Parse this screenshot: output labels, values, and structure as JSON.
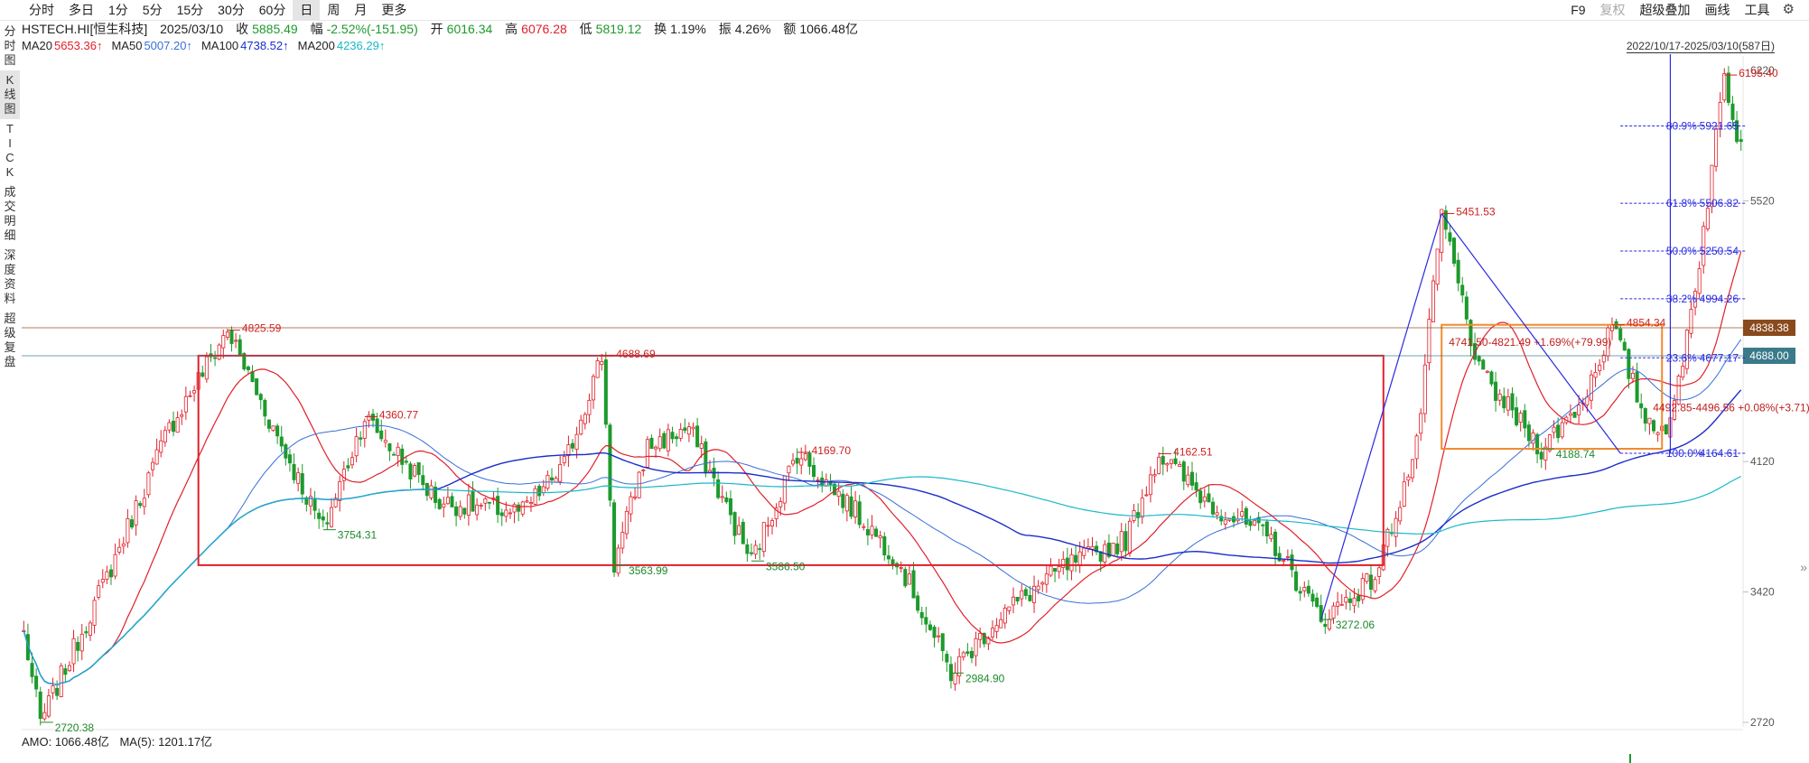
{
  "toolbar": {
    "tabs": [
      {
        "label": "分时",
        "active": false
      },
      {
        "label": "多日",
        "active": false
      },
      {
        "label": "1分",
        "active": false
      },
      {
        "label": "5分",
        "active": false
      },
      {
        "label": "15分",
        "active": false
      },
      {
        "label": "30分",
        "active": false
      },
      {
        "label": "60分",
        "active": false
      },
      {
        "label": "日",
        "active": true
      },
      {
        "label": "周",
        "active": false
      },
      {
        "label": "月",
        "active": false
      },
      {
        "label": "更多",
        "active": false
      }
    ],
    "right_items": [
      "F9",
      "复权",
      "超级叠加",
      "画线",
      "工具"
    ]
  },
  "info": {
    "name": "HSTECH.HI[恒生科技]",
    "date": "2025/03/10",
    "close_label": "收",
    "close": "5885.49",
    "change_label": "幅",
    "change": "-2.52%(-151.95)",
    "open_label": "开",
    "open": "6016.34",
    "high_label": "高",
    "high": "6076.28",
    "low_label": "低",
    "low": "5819.12",
    "turnover_label": "换",
    "turnover": "1.19%",
    "amplitude_label": "振",
    "amplitude": "4.26%",
    "amount_label": "额",
    "amount": "1066.48亿"
  },
  "ma": [
    {
      "label": "MA20",
      "value": "5653.36↑",
      "color": "#e0202a"
    },
    {
      "label": "MA50",
      "value": "5007.20↑",
      "color": "#3a6fd8"
    },
    {
      "label": "MA100",
      "value": "4738.52↑",
      "color": "#1a2fc8"
    },
    {
      "label": "MA200",
      "value": "4236.29↑",
      "color": "#18b8c8"
    }
  ],
  "side_buttons": [
    {
      "label": "分时图",
      "active": false
    },
    {
      "label": "K线图",
      "active": true
    },
    {
      "label": "TICK",
      "active": false
    },
    {
      "label": "成交明细",
      "active": false
    },
    {
      "label": "深度资料",
      "active": false
    },
    {
      "label": "超级复盘",
      "active": false
    }
  ],
  "range_label": "2022/10/17-2025/03/10(587日)",
  "bottom": {
    "amo": "AMO: 1066.48亿",
    "ma5": "MA(5): 1201.17亿"
  },
  "colors": {
    "up": "#e0202a",
    "down": "#1d9a2c",
    "ma20": "#e0202a",
    "ma50": "#3a6fd8",
    "ma100": "#1a2fc8",
    "ma200": "#18b8c8",
    "box": "#e0202a",
    "box2": "#f28a2c",
    "trend": "#2a2ae0"
  },
  "chart_data": {
    "type": "candlestick",
    "x_range": [
      "2022/10/17",
      "2025/03/10"
    ],
    "bars": 587,
    "ylim": [
      2600,
      6300
    ],
    "yticks": [
      2720,
      3420,
      4120,
      4820,
      5520,
      6220
    ],
    "price_tags": [
      {
        "value": 4838.38,
        "label": "4838.38",
        "color": "#8a4a1e"
      },
      {
        "value": 4688.0,
        "label": "4688.00",
        "color": "#3a7a8a"
      }
    ],
    "extrema": [
      {
        "i": 4,
        "price": 2720.38,
        "label": "2720.38",
        "kind": "low"
      },
      {
        "i": 49,
        "price": 4825.59,
        "label": "4825.59",
        "kind": "high"
      },
      {
        "i": 72,
        "price": 3754.31,
        "label": "3754.31",
        "kind": "low"
      },
      {
        "i": 82,
        "price": 4360.77,
        "label": "4360.77",
        "kind": "high"
      },
      {
        "i": 142,
        "price": 3563.99,
        "label": "3563.99",
        "kind": "low"
      },
      {
        "i": 139,
        "price": 4688.69,
        "label": "4688.69",
        "kind": "high"
      },
      {
        "i": 175,
        "price": 3586.5,
        "label": "3586.50",
        "kind": "low"
      },
      {
        "i": 186,
        "price": 4169.7,
        "label": "4169.70",
        "kind": "high"
      },
      {
        "i": 223,
        "price": 2984.9,
        "label": "2984.90",
        "kind": "low"
      },
      {
        "i": 273,
        "price": 4162.51,
        "label": "4162.51",
        "kind": "high"
      },
      {
        "i": 312,
        "price": 3272.06,
        "label": "3272.06",
        "kind": "low"
      },
      {
        "i": 341,
        "price": 5451.53,
        "label": "5451.53",
        "kind": "high"
      },
      {
        "i": 365,
        "price": 4188.74,
        "label": "4188.74",
        "kind": "low"
      },
      {
        "i": 382,
        "price": 4854.34,
        "label": "4854.34",
        "kind": "high"
      },
      {
        "i": 409,
        "price": 6195.4,
        "label": "6195.40",
        "kind": "high"
      }
    ],
    "fib_levels": [
      {
        "pct": "80.9%",
        "value": 5921.65,
        "label": "5921.65"
      },
      {
        "pct": "61.8%",
        "value": 5506.82,
        "label": "5506.82"
      },
      {
        "pct": "50.0%",
        "value": 5250.54,
        "label": "5250.54"
      },
      {
        "pct": "38.2%",
        "value": 4994.26,
        "label": "4994.26"
      },
      {
        "pct": "23.6%",
        "value": 4677.17,
        "label": "4677.17"
      },
      {
        "pct": "100.0%",
        "value": 4164.61,
        "label": "4164.61"
      }
    ],
    "box1": {
      "i0": 42,
      "i1": 327,
      "top": 4688.69,
      "bottom": 3563.99
    },
    "box2": {
      "i0": 341,
      "i1": 394,
      "top": 4854.34,
      "bottom": 4188.74,
      "label_top": "4741.50-4821.49 +1.69%(+79.99)",
      "label_mid": "4492.85-4496.56 +0.08%(+3.71)"
    },
    "trend_lines": [
      {
        "from": [
          312,
          3272.06
        ],
        "to": [
          341,
          5451.53
        ]
      },
      {
        "from": [
          341,
          5451.53
        ],
        "to": [
          384,
          4164.61
        ]
      }
    ],
    "key_points": [
      [
        0,
        3200
      ],
      [
        4,
        2720.38
      ],
      [
        20,
        3500
      ],
      [
        35,
        4300
      ],
      [
        49,
        4825.59
      ],
      [
        60,
        4300
      ],
      [
        72,
        3754.31
      ],
      [
        82,
        4360.77
      ],
      [
        100,
        3900
      ],
      [
        120,
        3850
      ],
      [
        130,
        4100
      ],
      [
        139,
        4688.69
      ],
      [
        142,
        3563.99
      ],
      [
        150,
        4200
      ],
      [
        160,
        4300
      ],
      [
        175,
        3586.5
      ],
      [
        186,
        4169.7
      ],
      [
        200,
        3850
      ],
      [
        210,
        3600
      ],
      [
        223,
        2984.9
      ],
      [
        235,
        3300
      ],
      [
        250,
        3550
      ],
      [
        265,
        3700
      ],
      [
        273,
        4162.51
      ],
      [
        285,
        3900
      ],
      [
        300,
        3700
      ],
      [
        312,
        3272.06
      ],
      [
        325,
        3500
      ],
      [
        335,
        4200
      ],
      [
        341,
        5451.53
      ],
      [
        350,
        4600
      ],
      [
        365,
        4188.74
      ],
      [
        375,
        4450
      ],
      [
        382,
        4854.34
      ],
      [
        390,
        4350
      ],
      [
        396,
        4300
      ],
      [
        403,
        5200
      ],
      [
        409,
        6195.4
      ],
      [
        412,
        5885.49
      ]
    ]
  }
}
